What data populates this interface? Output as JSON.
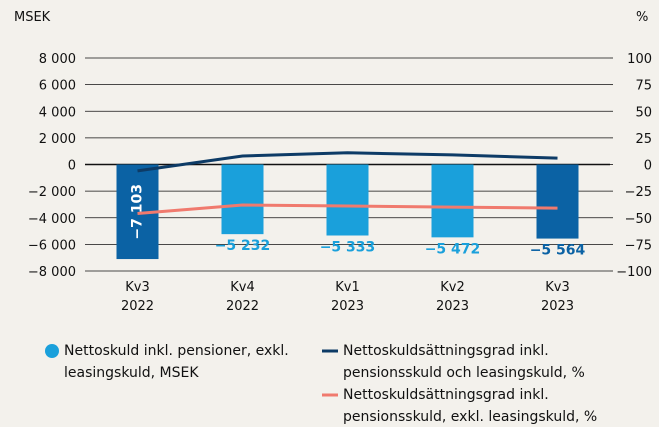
{
  "chart_data": {
    "type": "bar",
    "y_label": "MSEK",
    "y2_label": "%",
    "categories": [
      "Kv3 2022",
      "Kv4 2022",
      "Kv1 2023",
      "Kv2 2023",
      "Kv3 2023"
    ],
    "values": [
      -7103,
      -5232,
      -5333,
      -5472,
      -5564
    ],
    "value_labels": [
      "−7 103",
      "−5 232",
      "−5 333",
      "−5 472",
      "−5 564"
    ],
    "name": "Nettoskuld inkl. pensioner, exkl. leasingskuld, MSEK",
    "colors": [
      "#0b62a4",
      "#1aa0db",
      "#1aa0db",
      "#1aa0db",
      "#0b62a4"
    ],
    "ylim": [
      -8000,
      8000
    ],
    "yticks": [
      {
        "value": 8000,
        "label": "8 000"
      },
      {
        "value": 6000,
        "label": "6 000"
      },
      {
        "value": 4000,
        "label": "4 000"
      },
      {
        "value": 2000,
        "label": "2 000"
      },
      0,
      {
        "value": -2000,
        "label": "−2 000"
      },
      {
        "value": -4000,
        "label": "−4 000"
      },
      {
        "value": -6000,
        "label": "−6 000"
      },
      {
        "value": -8000,
        "label": "−8 000"
      }
    ],
    "y2lim": [
      -100,
      100
    ],
    "y2ticks": [
      100,
      75,
      50,
      25,
      0,
      {
        "value": -25,
        "label": "−25"
      },
      {
        "value": -50,
        "label": "−50"
      },
      {
        "value": -75,
        "label": "−75"
      },
      {
        "value": -100,
        "label": "−100"
      }
    ],
    "series": [
      {
        "name": "Nettoskuldsättningsgrad inkl. pensionsskuld och leasingskuld, %",
        "color": "#0d3b66",
        "axis": "y2",
        "values": [
          -6,
          8,
          11,
          9,
          6
        ]
      },
      {
        "name": "Nettoskuldsättningsgrad inkl. pensionsskuld, exkl. leasingskuld, %",
        "color": "#f07a6e",
        "axis": "y2",
        "values": [
          -46,
          -38,
          -39,
          -40,
          -41
        ]
      }
    ],
    "grid": true
  }
}
